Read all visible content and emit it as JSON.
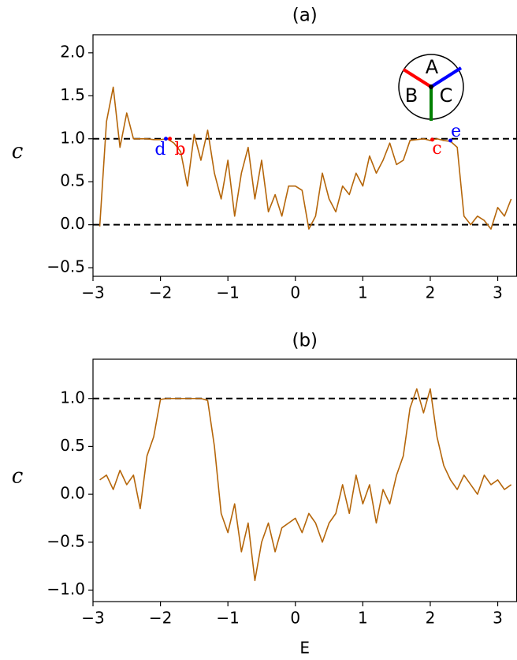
{
  "chart_data": [
    {
      "type": "line",
      "title": "(a)",
      "y_label": "c",
      "x": [
        -2.9,
        -2.8,
        -2.7,
        -2.6,
        -2.5,
        -2.4,
        -2.3,
        -2.2,
        -2.1,
        -2.0,
        -1.9,
        -1.8,
        -1.7,
        -1.6,
        -1.5,
        -1.4,
        -1.3,
        -1.2,
        -1.1,
        -1.0,
        -0.9,
        -0.8,
        -0.7,
        -0.6,
        -0.5,
        -0.4,
        -0.3,
        -0.2,
        -0.1,
        0.0,
        0.1,
        0.2,
        0.3,
        0.4,
        0.5,
        0.6,
        0.7,
        0.8,
        0.9,
        1.0,
        1.1,
        1.2,
        1.3,
        1.4,
        1.5,
        1.6,
        1.7,
        1.8,
        1.9,
        2.0,
        2.1,
        2.2,
        2.3,
        2.4,
        2.5,
        2.6,
        2.7,
        2.8,
        2.9,
        3.0,
        3.1,
        3.2
      ],
      "series": [
        {
          "color": "#b5660a",
          "values": [
            -0.02,
            1.2,
            1.6,
            0.9,
            1.3,
            1.0,
            1.0,
            1.0,
            0.99,
            0.99,
            1.0,
            0.95,
            0.85,
            0.45,
            1.05,
            0.75,
            1.1,
            0.6,
            0.3,
            0.75,
            0.1,
            0.6,
            0.9,
            0.3,
            0.75,
            0.15,
            0.35,
            0.1,
            0.45,
            0.45,
            0.4,
            -0.05,
            0.1,
            0.6,
            0.3,
            0.15,
            0.45,
            0.35,
            0.6,
            0.45,
            0.8,
            0.6,
            0.75,
            0.95,
            0.7,
            0.75,
            0.98,
            0.99,
            1.0,
            0.98,
            1.0,
            0.98,
            0.97,
            0.9,
            0.1,
            0.0,
            0.1,
            0.05,
            -0.05,
            0.2,
            0.1,
            0.3
          ]
        }
      ],
      "hlines": [
        0,
        1
      ],
      "markers": [
        {
          "label": "d",
          "x": -1.92,
          "y": 1.0,
          "color": "#0000ff"
        },
        {
          "label": "b",
          "x": -1.86,
          "y": 1.0,
          "color": "#ff0000"
        },
        {
          "label": "c",
          "x": 2.03,
          "y": 0.99,
          "color": "#ff0000"
        },
        {
          "label": "e",
          "x": 2.3,
          "y": 0.98,
          "color": "#0000ff"
        }
      ],
      "inset_labels": [
        "A",
        "B",
        "C"
      ],
      "xlim": [
        -3.0,
        3.28
      ],
      "ylim": [
        -0.6,
        2.21
      ],
      "xticks": [
        {
          "value": -3,
          "label": "−3"
        },
        {
          "value": -2,
          "label": "−2"
        },
        {
          "value": -1,
          "label": "−1"
        },
        0,
        1,
        2,
        3
      ],
      "yticks": [
        {
          "value": -0.5,
          "label": "−0.5"
        },
        {
          "value": 0,
          "label": "0.0"
        },
        0.5,
        {
          "value": 1,
          "label": "1.0"
        },
        1.5,
        {
          "value": 2,
          "label": "2.0"
        }
      ]
    },
    {
      "type": "line",
      "title": "(b)",
      "y_label": "c",
      "x_label": "E",
      "x": [
        -2.9,
        -2.8,
        -2.7,
        -2.6,
        -2.5,
        -2.4,
        -2.3,
        -2.2,
        -2.1,
        -2.0,
        -1.9,
        -1.8,
        -1.7,
        -1.6,
        -1.5,
        -1.4,
        -1.3,
        -1.2,
        -1.1,
        -1.0,
        -0.9,
        -0.8,
        -0.7,
        -0.6,
        -0.5,
        -0.4,
        -0.3,
        -0.2,
        -0.1,
        0.0,
        0.1,
        0.2,
        0.3,
        0.4,
        0.5,
        0.6,
        0.7,
        0.8,
        0.9,
        1.0,
        1.1,
        1.2,
        1.3,
        1.4,
        1.5,
        1.6,
        1.7,
        1.8,
        1.9,
        2.0,
        2.1,
        2.2,
        2.3,
        2.4,
        2.5,
        2.6,
        2.7,
        2.8,
        2.9,
        3.0,
        3.1,
        3.2
      ],
      "series": [
        {
          "color": "#b5660a",
          "values": [
            0.15,
            0.2,
            0.05,
            0.25,
            0.1,
            0.2,
            -0.15,
            0.4,
            0.6,
            0.99,
            1.0,
            1.0,
            1.0,
            1.0,
            1.0,
            1.0,
            0.98,
            0.5,
            -0.2,
            -0.4,
            -0.1,
            -0.6,
            -0.3,
            -0.9,
            -0.5,
            -0.3,
            -0.6,
            -0.35,
            -0.3,
            -0.25,
            -0.4,
            -0.2,
            -0.3,
            -0.5,
            -0.3,
            -0.2,
            0.1,
            -0.2,
            0.2,
            -0.1,
            0.1,
            -0.3,
            0.05,
            -0.1,
            0.2,
            0.4,
            0.9,
            1.1,
            0.85,
            1.1,
            0.6,
            0.3,
            0.15,
            0.05,
            0.2,
            0.1,
            0.0,
            0.2,
            0.1,
            0.15,
            0.05,
            0.1
          ]
        }
      ],
      "hlines": [
        1
      ],
      "xlim": [
        -3.0,
        3.28
      ],
      "ylim": [
        -1.12,
        1.41
      ],
      "xticks": [
        {
          "value": -3,
          "label": "−3"
        },
        {
          "value": -2,
          "label": "−2"
        },
        {
          "value": -1,
          "label": "−1"
        },
        0,
        1,
        2,
        3
      ],
      "yticks": [
        {
          "value": -1,
          "label": "−1.0"
        },
        {
          "value": -0.5,
          "label": "−0.5"
        },
        {
          "value": 0,
          "label": "0.0"
        },
        0.5,
        {
          "value": 1,
          "label": "1.0"
        }
      ]
    }
  ]
}
